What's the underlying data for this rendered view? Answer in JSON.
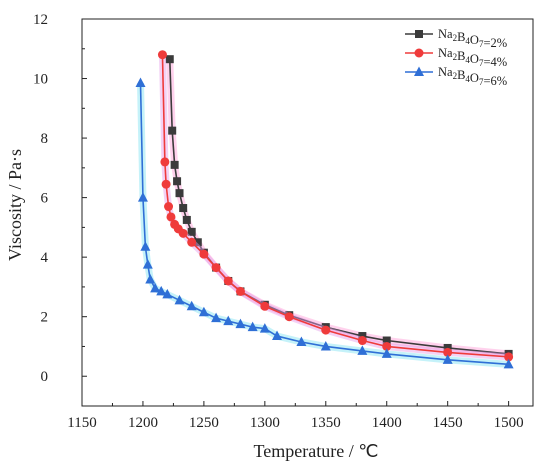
{
  "chart_data": {
    "type": "line",
    "xlabel": "Temperature / ℃",
    "ylabel": "Viscosity / Pa·s",
    "xlim": [
      1150,
      1520
    ],
    "ylim": [
      -1,
      12
    ],
    "xticks": [
      1150,
      1200,
      1250,
      1300,
      1350,
      1400,
      1450,
      1500
    ],
    "yticks": [
      0,
      2,
      4,
      6,
      8,
      10,
      12
    ],
    "grid": false,
    "legend_position": "top-right",
    "series": [
      {
        "name_parts": [
          "Na",
          "2",
          "B",
          "4",
          "O",
          "7",
          "=2%"
        ],
        "color": "#3b3b3b",
        "marker": "square",
        "x": [
          1222,
          1224,
          1226,
          1228,
          1230,
          1233,
          1236,
          1240,
          1245,
          1250,
          1260,
          1270,
          1280,
          1300,
          1320,
          1350,
          1380,
          1400,
          1450,
          1500
        ],
        "y": [
          10.65,
          8.25,
          7.1,
          6.55,
          6.15,
          5.65,
          5.25,
          4.85,
          4.5,
          4.15,
          3.65,
          3.2,
          2.85,
          2.4,
          2.05,
          1.65,
          1.35,
          1.2,
          0.95,
          0.75
        ]
      },
      {
        "name_parts": [
          "Na",
          "2",
          "B",
          "4",
          "O",
          "7",
          "=4%"
        ],
        "color": "#ef3b3b",
        "marker": "circle",
        "x": [
          1216,
          1218,
          1219,
          1221,
          1223,
          1226,
          1229,
          1233,
          1240,
          1250,
          1260,
          1270,
          1280,
          1300,
          1320,
          1350,
          1380,
          1400,
          1450,
          1500
        ],
        "y": [
          10.8,
          7.2,
          6.45,
          5.7,
          5.35,
          5.1,
          4.95,
          4.8,
          4.5,
          4.1,
          3.65,
          3.2,
          2.85,
          2.35,
          2.0,
          1.55,
          1.2,
          1.0,
          0.8,
          0.65
        ]
      },
      {
        "name_parts": [
          "Na",
          "2",
          "B",
          "4",
          "O",
          "7",
          "=6%"
        ],
        "color": "#2f6fd6",
        "marker": "triangle",
        "x": [
          1198,
          1200,
          1202,
          1204,
          1206,
          1210,
          1215,
          1220,
          1230,
          1240,
          1250,
          1260,
          1270,
          1280,
          1290,
          1300,
          1310,
          1330,
          1350,
          1380,
          1400,
          1450,
          1500
        ],
        "y": [
          9.85,
          6.0,
          4.35,
          3.75,
          3.25,
          2.95,
          2.85,
          2.75,
          2.55,
          2.35,
          2.15,
          1.95,
          1.85,
          1.75,
          1.65,
          1.6,
          1.35,
          1.15,
          1.0,
          0.85,
          0.75,
          0.55,
          0.4
        ]
      }
    ]
  }
}
